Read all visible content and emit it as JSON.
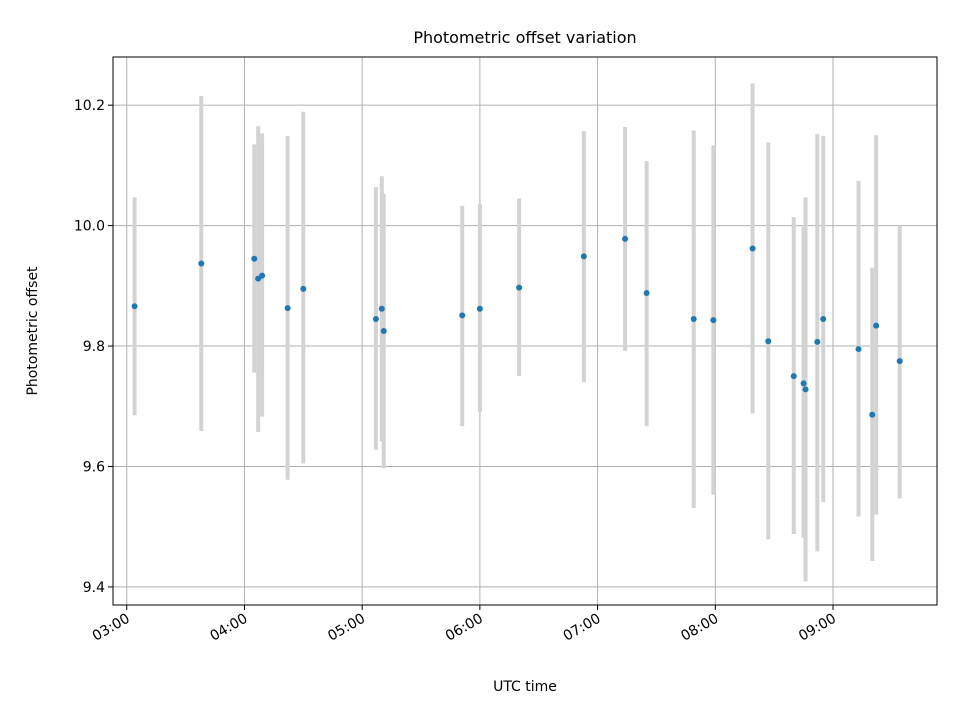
{
  "chart_data": {
    "type": "scatter",
    "title": "Photometric offset variation",
    "xlabel": "UTC time",
    "ylabel": "Photometric offset",
    "grid": true,
    "xlim": [
      "02:53",
      "09:53"
    ],
    "ylim": [
      9.37,
      10.28
    ],
    "x_ticks": [
      "03:00",
      "04:00",
      "05:00",
      "06:00",
      "07:00",
      "08:00",
      "09:00"
    ],
    "y_ticks": [
      9.4,
      9.6,
      9.8,
      10.0,
      10.2
    ],
    "y_tick_labels": [
      "9.4",
      "9.6",
      "9.8",
      "10.0",
      "10.2"
    ],
    "colors": {
      "points": "#1f77b4",
      "error_bars": "#d3d3d3"
    },
    "points": [
      {
        "t": "03:04",
        "y": 9.866,
        "low": 9.685,
        "high": 10.047
      },
      {
        "t": "03:38",
        "y": 9.937,
        "low": 9.659,
        "high": 10.215
      },
      {
        "t": "04:05",
        "y": 9.945,
        "low": 9.756,
        "high": 10.135
      },
      {
        "t": "04:07",
        "y": 9.912,
        "low": 9.657,
        "high": 10.165
      },
      {
        "t": "04:09",
        "y": 9.917,
        "low": 9.683,
        "high": 10.153
      },
      {
        "t": "04:22",
        "y": 9.863,
        "low": 9.578,
        "high": 10.149
      },
      {
        "t": "04:30",
        "y": 9.895,
        "low": 9.605,
        "high": 10.189
      },
      {
        "t": "05:07",
        "y": 9.845,
        "low": 9.628,
        "high": 10.064
      },
      {
        "t": "05:10",
        "y": 9.862,
        "low": 9.642,
        "high": 10.082
      },
      {
        "t": "05:11",
        "y": 9.825,
        "low": 9.597,
        "high": 10.053
      },
      {
        "t": "05:51",
        "y": 9.851,
        "low": 9.667,
        "high": 10.033
      },
      {
        "t": "06:00",
        "y": 9.862,
        "low": 9.69,
        "high": 10.036
      },
      {
        "t": "06:20",
        "y": 9.897,
        "low": 9.75,
        "high": 10.045
      },
      {
        "t": "06:53",
        "y": 9.949,
        "low": 9.74,
        "high": 10.157
      },
      {
        "t": "07:14",
        "y": 9.978,
        "low": 9.792,
        "high": 10.164
      },
      {
        "t": "07:25",
        "y": 9.888,
        "low": 9.667,
        "high": 10.107
      },
      {
        "t": "07:49",
        "y": 9.845,
        "low": 9.531,
        "high": 10.158
      },
      {
        "t": "07:59",
        "y": 9.843,
        "low": 9.553,
        "high": 10.133
      },
      {
        "t": "08:19",
        "y": 9.962,
        "low": 9.688,
        "high": 10.236
      },
      {
        "t": "08:27",
        "y": 9.808,
        "low": 9.479,
        "high": 10.138
      },
      {
        "t": "08:40",
        "y": 9.75,
        "low": 9.488,
        "high": 10.014
      },
      {
        "t": "08:45",
        "y": 9.738,
        "low": 9.482,
        "high": 9.998
      },
      {
        "t": "08:46",
        "y": 9.728,
        "low": 9.409,
        "high": 10.047
      },
      {
        "t": "08:52",
        "y": 9.807,
        "low": 9.459,
        "high": 10.152
      },
      {
        "t": "08:55",
        "y": 9.845,
        "low": 9.541,
        "high": 10.149
      },
      {
        "t": "09:13",
        "y": 9.795,
        "low": 9.517,
        "high": 10.074
      },
      {
        "t": "09:20",
        "y": 9.686,
        "low": 9.443,
        "high": 9.93
      },
      {
        "t": "09:22",
        "y": 9.834,
        "low": 9.52,
        "high": 10.15
      },
      {
        "t": "09:34",
        "y": 9.775,
        "low": 9.547,
        "high": 10.0
      }
    ]
  }
}
